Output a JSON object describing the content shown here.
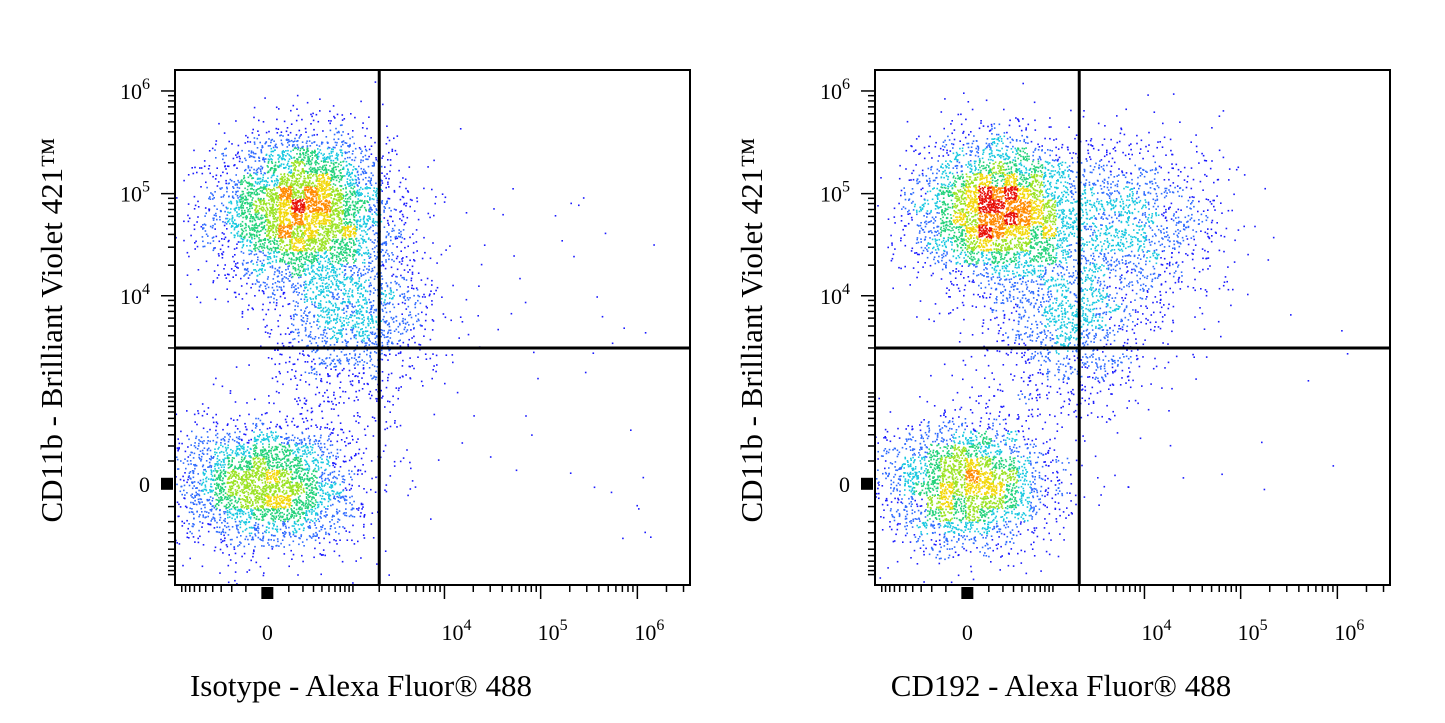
{
  "chart_data": [
    {
      "type": "scatter",
      "plot_style": "pseudocolor density dot plot (blue→green→yellow→red)",
      "xlabel": "Isotype - Alexa Fluor® 488",
      "ylabel": "CD11b - Brilliant Violet 421™",
      "x_scale": "biexponential",
      "y_scale": "biexponential",
      "x_ticks": [
        "0",
        "10^4",
        "10^5",
        "10^6"
      ],
      "y_ticks": [
        "10^6",
        "10^5",
        "10^4",
        "0"
      ],
      "quadrant_gate": {
        "x": 2000,
        "y": 3000
      },
      "populations": [
        {
          "name_visible": false,
          "x_center": 200,
          "y_center": 70000,
          "x_spread": 0.32,
          "y_spread": 0.26,
          "weight": 0.5
        },
        {
          "name_visible": false,
          "x_center": 0,
          "y_center": 0,
          "x_spread": 0.33,
          "y_spread": 0.22,
          "weight": 0.34
        },
        {
          "name_visible": false,
          "x_center": 1000,
          "y_center": 6000,
          "x_spread": 0.3,
          "y_spread": 0.3,
          "weight": 0.16
        }
      ],
      "sparse_events": 60
    },
    {
      "type": "scatter",
      "plot_style": "pseudocolor density dot plot (blue→green→yellow→red)",
      "xlabel": "CD192 - Alexa Fluor® 488",
      "ylabel": "CD11b - Brilliant Violet 421™",
      "x_scale": "biexponential",
      "y_scale": "biexponential",
      "x_ticks": [
        "0",
        "10^4",
        "10^5",
        "10^6"
      ],
      "y_ticks": [
        "10^6",
        "10^5",
        "10^4",
        "0"
      ],
      "quadrant_gate": {
        "x": 2000,
        "y": 3000
      },
      "populations": [
        {
          "name_visible": false,
          "x_center": 150,
          "y_center": 70000,
          "x_spread": 0.3,
          "y_spread": 0.25,
          "weight": 0.42
        },
        {
          "name_visible": false,
          "x_center": 7000,
          "y_center": 50000,
          "x_spread": 0.35,
          "y_spread": 0.3,
          "weight": 0.14
        },
        {
          "name_visible": false,
          "x_center": 0,
          "y_center": 0,
          "x_spread": 0.32,
          "y_spread": 0.22,
          "weight": 0.3
        },
        {
          "name_visible": false,
          "x_center": 1500,
          "y_center": 5000,
          "x_spread": 0.3,
          "y_spread": 0.3,
          "weight": 0.14
        }
      ],
      "sparse_events": 20
    }
  ]
}
